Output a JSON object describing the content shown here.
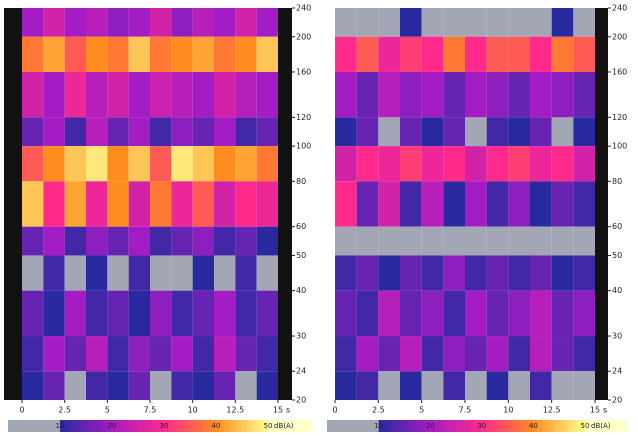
{
  "chart_data": [
    {
      "type": "heatmap",
      "xlabel": "s",
      "xlim": [
        0,
        15
      ],
      "xticks": [
        0,
        2.5,
        5,
        7.5,
        10,
        12.5,
        15
      ],
      "ylim": [
        20,
        240
      ],
      "log_y": true,
      "yticks": [
        240,
        200,
        160,
        120,
        100,
        80,
        60,
        50,
        40,
        30,
        24,
        20
      ],
      "x_bins": [
        0,
        1.25,
        2.5,
        3.75,
        5,
        6.25,
        7.5,
        8.75,
        10,
        11.25,
        12.5,
        13.75,
        15
      ],
      "y_bins": [
        240,
        200,
        160,
        120,
        100,
        80,
        60,
        50,
        40,
        30,
        24,
        20
      ],
      "z": [
        [
          20,
          25,
          20,
          22,
          18,
          20,
          25,
          18,
          22,
          20,
          25,
          20
        ],
        [
          38,
          42,
          35,
          40,
          38,
          45,
          38,
          40,
          42,
          38,
          40,
          45
        ],
        [
          25,
          20,
          28,
          22,
          25,
          20,
          24,
          22,
          20,
          25,
          22,
          20
        ],
        [
          15,
          20,
          12,
          22,
          15,
          20,
          12,
          18,
          15,
          20,
          12,
          15
        ],
        [
          35,
          40,
          45,
          48,
          40,
          45,
          35,
          48,
          45,
          40,
          42,
          38
        ],
        [
          45,
          30,
          42,
          28,
          40,
          25,
          38,
          28,
          35,
          25,
          30,
          28
        ],
        [
          15,
          20,
          12,
          18,
          15,
          20,
          12,
          15,
          18,
          12,
          15,
          10
        ],
        [
          5,
          12,
          5,
          10,
          5,
          12,
          8,
          5,
          10,
          5,
          12,
          5
        ],
        [
          15,
          10,
          20,
          12,
          15,
          10,
          18,
          12,
          15,
          20,
          12,
          15
        ],
        [
          12,
          20,
          15,
          22,
          12,
          18,
          15,
          20,
          12,
          22,
          15,
          12
        ],
        [
          10,
          15,
          5,
          12,
          10,
          15,
          8,
          12,
          10,
          15,
          5,
          10
        ]
      ]
    },
    {
      "type": "heatmap",
      "xlabel": "s",
      "xlim": [
        0,
        15
      ],
      "xticks": [
        0,
        2.5,
        5,
        7.5,
        10,
        12.5,
        15
      ],
      "ylim": [
        20,
        240
      ],
      "log_y": true,
      "yticks": [
        240,
        200,
        160,
        120,
        100,
        80,
        60,
        50,
        40,
        30,
        24,
        20
      ],
      "x_bins": [
        0,
        1.25,
        2.5,
        3.75,
        5,
        6.25,
        7.5,
        8.75,
        10,
        11.25,
        12.5,
        13.75,
        15
      ],
      "y_bins": [
        240,
        200,
        160,
        120,
        100,
        80,
        60,
        50,
        40,
        30,
        24,
        20
      ],
      "z": [
        [
          5,
          8,
          5,
          10,
          5,
          8,
          5,
          5,
          8,
          5,
          10,
          5
        ],
        [
          30,
          35,
          28,
          32,
          30,
          38,
          30,
          35,
          35,
          30,
          38,
          35
        ],
        [
          20,
          15,
          22,
          18,
          20,
          15,
          20,
          18,
          15,
          20,
          18,
          15
        ],
        [
          10,
          15,
          8,
          15,
          10,
          15,
          8,
          12,
          10,
          15,
          8,
          10
        ],
        [
          25,
          30,
          28,
          32,
          28,
          30,
          25,
          30,
          32,
          28,
          30,
          25
        ],
        [
          30,
          15,
          25,
          12,
          22,
          10,
          20,
          12,
          18,
          10,
          15,
          12
        ],
        [
          0,
          0,
          0,
          0,
          0,
          0,
          0,
          0,
          0,
          0,
          0,
          0
        ],
        [
          12,
          15,
          10,
          15,
          12,
          18,
          12,
          15,
          12,
          15,
          10,
          12
        ],
        [
          15,
          12,
          22,
          15,
          18,
          12,
          20,
          15,
          18,
          22,
          15,
          18
        ],
        [
          12,
          20,
          15,
          22,
          12,
          18,
          15,
          20,
          12,
          22,
          15,
          12
        ],
        [
          10,
          12,
          5,
          10,
          8,
          12,
          5,
          10,
          8,
          12,
          5,
          8
        ]
      ]
    }
  ],
  "colorbar": {
    "label": "dB(A)",
    "clim": [
      0,
      50
    ],
    "ticks": [
      10,
      20,
      30,
      40,
      50
    ],
    "below_color": "#a3a7b5",
    "stops": [
      {
        "value": 10,
        "color": "#2a2aa0"
      },
      {
        "value": 20,
        "color": "#a41cc4"
      },
      {
        "value": 30,
        "color": "#ff2a8c"
      },
      {
        "value": 40,
        "color": "#ff8c1e"
      },
      {
        "value": 50,
        "color": "#ffff90"
      }
    ]
  }
}
